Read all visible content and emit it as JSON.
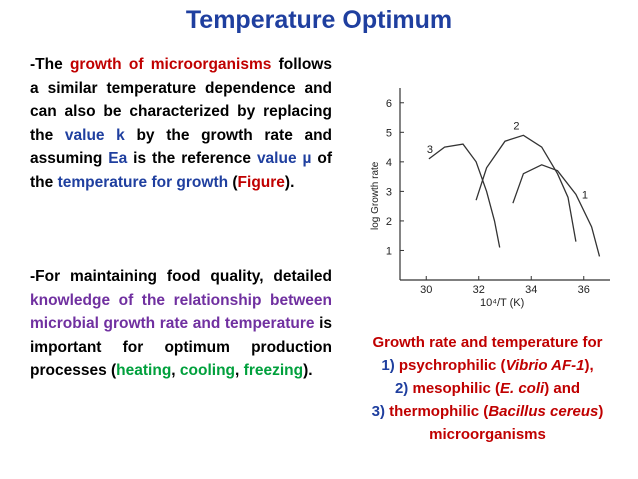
{
  "title": "Temperature Optimum",
  "para1": {
    "t1": "-The ",
    "t2": "growth of microorganisms",
    "t3": " follows a similar temperature dependence and can also be characterized by replacing the ",
    "t4": "value k",
    "t5": " by the growth rate and assuming ",
    "t6": "Ea",
    "t7": " is the reference ",
    "t8": "value µ",
    "t9": " of the ",
    "t10": "temperature for growth",
    "t11": " (",
    "t12": "Figure",
    "t13": ")."
  },
  "para2": {
    "t1": "-For maintaining food quality, detailed ",
    "t2": "knowledge of the relationship between microbial growth rate and temperature",
    "t3": " is important for optimum production processes (",
    "t4": "heating",
    "t5": ", ",
    "t6": "cooling",
    "t7": ", ",
    "t8": "freezing",
    "t9": ")."
  },
  "caption": {
    "c1": "Growth rate and temperature for",
    "c2": "1)",
    "c3": " psychrophilic (",
    "c4": "Vibrio AF-1",
    "c5": "),",
    "c6": "2)",
    "c7": " mesophilic (",
    "c8": "E. coli",
    "c9": ") and",
    "c10": "3)",
    "c11": " thermophilic (",
    "c12": "Bacillus cereus",
    "c13": ")",
    "c14": "microorganisms"
  },
  "colors": {
    "title": "#1f3f9f",
    "red": "#c00000",
    "blue": "#1f3f9f",
    "purple": "#7030a0",
    "green": "#00a03c"
  },
  "chart_data": {
    "type": "line",
    "xlabel": "10⁴/T (K)",
    "ylabel": "log Growth rate",
    "xlim": [
      29,
      37
    ],
    "ylim": [
      0,
      6.5
    ],
    "xticks": [
      30,
      32,
      34,
      36
    ],
    "yticks": [
      1,
      2,
      3,
      4,
      5,
      6
    ],
    "series": [
      {
        "name": "1",
        "label": "1",
        "points": [
          [
            33.3,
            2.6
          ],
          [
            33.7,
            3.6
          ],
          [
            34.4,
            3.9
          ],
          [
            35.0,
            3.7
          ],
          [
            35.7,
            2.9
          ],
          [
            36.3,
            1.8
          ],
          [
            36.6,
            0.8
          ]
        ]
      },
      {
        "name": "2",
        "label": "2",
        "points": [
          [
            31.9,
            2.7
          ],
          [
            32.3,
            3.8
          ],
          [
            33.0,
            4.7
          ],
          [
            33.7,
            4.9
          ],
          [
            34.4,
            4.5
          ],
          [
            35.0,
            3.6
          ],
          [
            35.4,
            2.8
          ],
          [
            35.7,
            1.3
          ]
        ]
      },
      {
        "name": "3",
        "label": "3",
        "points": [
          [
            30.1,
            4.1
          ],
          [
            30.7,
            4.5
          ],
          [
            31.4,
            4.6
          ],
          [
            31.9,
            4.0
          ],
          [
            32.3,
            3.0
          ],
          [
            32.6,
            2.0
          ],
          [
            32.8,
            1.1
          ]
        ]
      }
    ]
  }
}
